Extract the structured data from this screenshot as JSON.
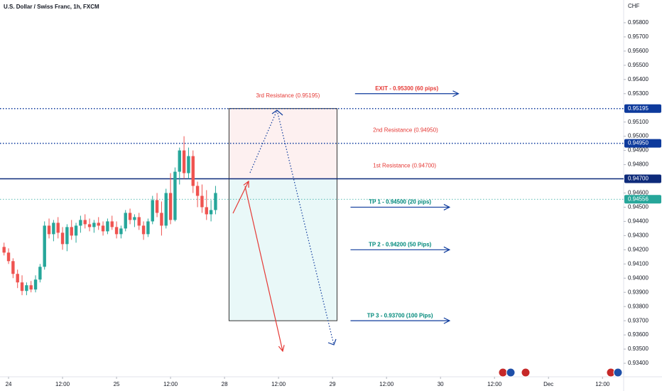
{
  "chart_data": {
    "type": "candlestick",
    "title": "U.S. Dollar / Swiss Franc, 1h, FXCM",
    "currency": "CHF",
    "x": [
      -1,
      0,
      1,
      2,
      3,
      4,
      5,
      6,
      7,
      8,
      9,
      10,
      11,
      12,
      13,
      14,
      15,
      16,
      17,
      18,
      19,
      20,
      21,
      22,
      23,
      24,
      25,
      26,
      27,
      28,
      29,
      30,
      31,
      32,
      33,
      34,
      35,
      36,
      37,
      38,
      39,
      40,
      41,
      42,
      43,
      44,
      45,
      46
    ],
    "open": [
      0.9422,
      0.9418,
      0.9412,
      0.9403,
      0.9397,
      0.9391,
      0.9395,
      0.9392,
      0.9399,
      0.9408,
      0.9437,
      0.9431,
      0.9439,
      0.9432,
      0.9424,
      0.9436,
      0.943,
      0.9437,
      0.9441,
      0.9438,
      0.9436,
      0.9439,
      0.9437,
      0.9433,
      0.944,
      0.9436,
      0.9431,
      0.9435,
      0.9446,
      0.9441,
      0.9443,
      0.9437,
      0.9431,
      0.944,
      0.9455,
      0.9446,
      0.9437,
      0.946,
      0.9441,
      0.9475,
      0.949,
      0.9474,
      0.9486,
      0.9465,
      0.9458,
      0.945,
      0.9445,
      0.9448
    ],
    "high": [
      0.9425,
      0.9421,
      0.9414,
      0.9406,
      0.9402,
      0.9397,
      0.9398,
      0.9402,
      0.941,
      0.944,
      0.9442,
      0.9441,
      0.9443,
      0.9436,
      0.9438,
      0.9441,
      0.9439,
      0.9444,
      0.9445,
      0.9442,
      0.9441,
      0.9443,
      0.944,
      0.9442,
      0.9444,
      0.944,
      0.9437,
      0.9448,
      0.9449,
      0.9445,
      0.9446,
      0.944,
      0.9442,
      0.9458,
      0.946,
      0.9454,
      0.9463,
      0.9474,
      0.9478,
      0.9492,
      0.95,
      0.9492,
      0.949,
      0.9468,
      0.9466,
      0.9462,
      0.9455,
      0.9465
    ],
    "low": [
      0.9416,
      0.941,
      0.94,
      0.9393,
      0.9388,
      0.9388,
      0.939,
      0.939,
      0.9397,
      0.9406,
      0.9428,
      0.9426,
      0.9428,
      0.942,
      0.9419,
      0.9427,
      0.9425,
      0.9432,
      0.9435,
      0.9433,
      0.9432,
      0.9434,
      0.943,
      0.9431,
      0.9434,
      0.9428,
      0.9428,
      0.9433,
      0.9438,
      0.9436,
      0.9434,
      0.9427,
      0.9429,
      0.9438,
      0.9443,
      0.943,
      0.9435,
      0.9438,
      0.944,
      0.9466,
      0.947,
      0.947,
      0.946,
      0.945,
      0.9446,
      0.9441,
      0.944,
      0.9445
    ],
    "close": [
      0.9418,
      0.9412,
      0.9403,
      0.9397,
      0.9391,
      0.9395,
      0.9392,
      0.9399,
      0.9408,
      0.9437,
      0.9431,
      0.9439,
      0.9432,
      0.9424,
      0.9436,
      0.943,
      0.9437,
      0.9441,
      0.9438,
      0.9436,
      0.9439,
      0.9437,
      0.9433,
      0.944,
      0.9436,
      0.9431,
      0.9435,
      0.9446,
      0.9441,
      0.9443,
      0.9437,
      0.9431,
      0.944,
      0.9455,
      0.9446,
      0.9437,
      0.946,
      0.9441,
      0.9475,
      0.949,
      0.9474,
      0.9486,
      0.9465,
      0.9458,
      0.945,
      0.9445,
      0.9448,
      0.946
    ],
    "up_color": "#26a69a",
    "down_color": "#ef5350",
    "xlim": [
      -1.9,
      136.7
    ],
    "ylim": [
      0.93305,
      0.9596
    ],
    "xticks": [
      {
        "value": 0,
        "label": "24"
      },
      {
        "value": 12,
        "label": "12:00"
      },
      {
        "value": 24,
        "label": "25"
      },
      {
        "value": 36,
        "label": "12:00"
      },
      {
        "value": 48,
        "label": "28"
      },
      {
        "value": 60,
        "label": "12:00"
      },
      {
        "value": 72,
        "label": "29"
      },
      {
        "value": 84,
        "label": "12:00"
      },
      {
        "value": 96,
        "label": "30"
      },
      {
        "value": 108,
        "label": "12:00"
      },
      {
        "value": 120,
        "label": "Dec"
      },
      {
        "value": 132,
        "label": "12:00"
      }
    ],
    "yticks": [
      {
        "value": 0.934,
        "label": "0.93400"
      },
      {
        "value": 0.935,
        "label": "0.93500"
      },
      {
        "value": 0.936,
        "label": "0.93600"
      },
      {
        "value": 0.937,
        "label": "0.93700"
      },
      {
        "value": 0.938,
        "label": "0.93800"
      },
      {
        "value": 0.939,
        "label": "0.93900"
      },
      {
        "value": 0.94,
        "label": "0.94000"
      },
      {
        "value": 0.941,
        "label": "0.94100"
      },
      {
        "value": 0.942,
        "label": "0.94200"
      },
      {
        "value": 0.943,
        "label": "0.94300"
      },
      {
        "value": 0.944,
        "label": "0.94400"
      },
      {
        "value": 0.945,
        "label": "0.94500"
      },
      {
        "value": 0.946,
        "label": "0.94600"
      },
      {
        "value": 0.948,
        "label": "0.94800"
      },
      {
        "value": 0.949,
        "label": "0.94900"
      },
      {
        "value": 0.95,
        "label": "0.95000"
      },
      {
        "value": 0.951,
        "label": "0.95100"
      },
      {
        "value": 0.953,
        "label": "0.95300"
      },
      {
        "value": 0.954,
        "label": "0.95400"
      },
      {
        "value": 0.955,
        "label": "0.95500"
      },
      {
        "value": 0.956,
        "label": "0.95600"
      },
      {
        "value": 0.957,
        "label": "0.95700"
      },
      {
        "value": 0.958,
        "label": "0.95800"
      }
    ],
    "grid": false,
    "price_lines": [
      {
        "value": 0.95195,
        "label": "0.95195",
        "color": "#0d3a9c",
        "style": "dotted"
      },
      {
        "value": 0.9495,
        "label": "0.94950",
        "color": "#0d3a9c",
        "style": "dotted"
      },
      {
        "value": 0.947,
        "label": "0.94700",
        "color": "#0d2a7a",
        "style": "solid"
      },
      {
        "value": 0.94556,
        "label": "0.94556",
        "color": "#26a69a",
        "style": "dotted"
      }
    ],
    "zones": [
      {
        "x": [
          49,
          73
        ],
        "from": 0.947,
        "to": 0.95195,
        "color": "#fdf0f0"
      },
      {
        "x": [
          49,
          73
        ],
        "from": 0.937,
        "to": 0.947,
        "color": "#e9f8f8"
      }
    ],
    "resistances": [
      {
        "label": "3rd Resistance (0.95195)",
        "value": 0.95195,
        "x": 55
      },
      {
        "label": "2nd Resistance (0.94950)",
        "value": 0.9495,
        "x": 81
      },
      {
        "label": "1st Resistance (0.94700)",
        "value": 0.947,
        "x": 81
      }
    ],
    "resistance_color": "#e53935",
    "targets": [
      {
        "label": "EXIT - 0.95300 (60 pips)",
        "value": 0.953,
        "x": [
          77,
          100
        ],
        "color": "#e53935",
        "arrow": "#0d3a9c"
      },
      {
        "label": "TP 1 - 0.94500 (20 pips)",
        "value": 0.945,
        "x": [
          76,
          98
        ],
        "color": "#00897b",
        "arrow": "#0d3a9c"
      },
      {
        "label": "TP 2 - 0.94200 (50 Pips)",
        "value": 0.942,
        "x": [
          76,
          98
        ],
        "color": "#00897b",
        "arrow": "#0d3a9c"
      },
      {
        "label": "TP 3 - 0.93700 (100 Pips)",
        "value": 0.937,
        "x": [
          76,
          98
        ],
        "color": "#00897b",
        "arrow": "#0d3a9c"
      }
    ]
  }
}
